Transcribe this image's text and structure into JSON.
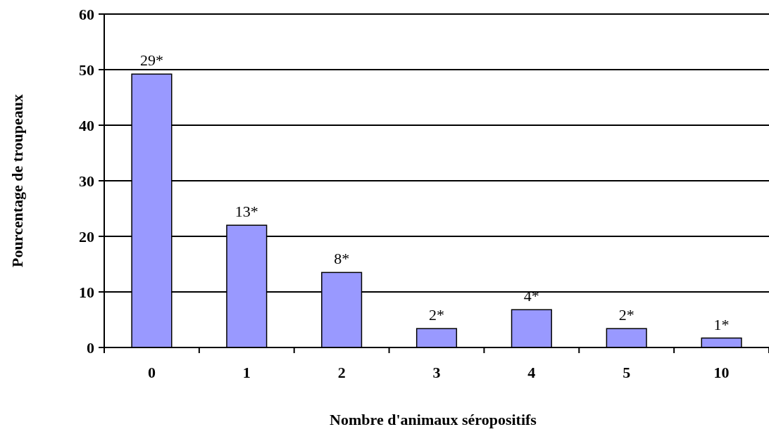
{
  "chart_data": {
    "type": "bar",
    "xlabel": "Nombre d'animaux séropositifs",
    "ylabel": "Pourcentage de troupeaux",
    "categories": [
      "0",
      "1",
      "2",
      "3",
      "4",
      "5",
      "10"
    ],
    "values": [
      49.2,
      22,
      13.5,
      3.4,
      6.8,
      3.4,
      1.7
    ],
    "annotations": [
      {
        "text": "29*",
        "x": "0",
        "y": 49.2
      },
      {
        "text": "13*",
        "x": "1",
        "y": 22
      },
      {
        "text": "8*",
        "x": "2",
        "y": 13.5
      },
      {
        "text": "2*",
        "x": "3",
        "y": 3.4
      },
      {
        "text": "4*",
        "x": "4",
        "y": 6.8
      },
      {
        "text": "2*",
        "x": "5",
        "y": 3.4
      },
      {
        "text": "1*",
        "x": "10",
        "y": 1.7
      }
    ],
    "color": "#9999ff",
    "ylim": [
      0,
      60
    ],
    "yticks": [
      0,
      10,
      20,
      30,
      40,
      50,
      60
    ],
    "grid": "y"
  }
}
